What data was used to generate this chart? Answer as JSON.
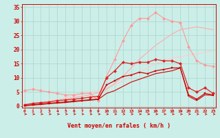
{
  "bg_color": "#cceee8",
  "grid_color": "#aad4ce",
  "xlabel": "Vent moyen/en rafales ( km/h )",
  "ylabel_values": [
    0,
    5,
    10,
    15,
    20,
    25,
    30,
    35
  ],
  "x_values": [
    0,
    1,
    2,
    3,
    4,
    5,
    6,
    7,
    8,
    9,
    10,
    11,
    12,
    13,
    14,
    15,
    16,
    17,
    18,
    19,
    20,
    21,
    22,
    23
  ],
  "series": [
    {
      "color": "#ffcccc",
      "marker": null,
      "markersize": 0,
      "linewidth": 0.8,
      "y": [
        0.0,
        0.6,
        1.2,
        1.8,
        2.4,
        3.0,
        3.6,
        4.2,
        4.8,
        5.5,
        6.5,
        7.5,
        9.0,
        10.5,
        12.0,
        13.5,
        15.0,
        16.0,
        17.0,
        17.5,
        18.0,
        18.5,
        19.0,
        19.5
      ]
    },
    {
      "color": "#ff9999",
      "marker": "D",
      "markersize": 2.2,
      "linewidth": 0.8,
      "y": [
        5.5,
        6.0,
        5.5,
        5.0,
        4.5,
        4.0,
        4.0,
        4.5,
        4.5,
        2.0,
        10.5,
        16.5,
        23.0,
        28.5,
        31.0,
        31.0,
        33.0,
        31.0,
        30.0,
        29.5,
        21.0,
        16.0,
        14.5,
        14.0
      ]
    },
    {
      "color": "#ffaaaa",
      "marker": null,
      "markersize": 0,
      "linewidth": 0.8,
      "y": [
        0.0,
        0.5,
        1.0,
        1.5,
        2.0,
        2.5,
        3.0,
        3.5,
        4.0,
        4.8,
        6.0,
        8.0,
        10.5,
        13.5,
        16.5,
        19.0,
        21.5,
        23.5,
        25.5,
        27.0,
        27.5,
        28.0,
        27.5,
        27.0
      ]
    },
    {
      "color": "#dd2222",
      "marker": "D",
      "markersize": 2.2,
      "linewidth": 0.9,
      "y": [
        0.5,
        1.0,
        1.3,
        1.5,
        2.0,
        2.2,
        2.5,
        2.8,
        3.2,
        3.5,
        10.0,
        12.5,
        15.5,
        15.0,
        15.5,
        15.5,
        16.5,
        16.0,
        16.0,
        15.0,
        6.5,
        5.0,
        6.5,
        4.5
      ]
    },
    {
      "color": "#cc0000",
      "marker": "s",
      "markersize": 2.0,
      "linewidth": 0.9,
      "y": [
        0.3,
        0.5,
        0.8,
        1.0,
        1.3,
        1.5,
        1.8,
        2.0,
        2.3,
        2.5,
        7.5,
        9.0,
        10.5,
        11.0,
        12.0,
        11.5,
        12.5,
        13.0,
        13.5,
        13.5,
        4.0,
        2.5,
        4.5,
        4.0
      ]
    },
    {
      "color": "#cc0000",
      "marker": null,
      "markersize": 0,
      "linewidth": 0.8,
      "y": [
        0.2,
        0.4,
        0.6,
        0.9,
        1.1,
        1.3,
        1.6,
        1.9,
        2.1,
        2.4,
        4.5,
        5.5,
        7.0,
        8.5,
        9.5,
        10.5,
        11.5,
        12.0,
        12.5,
        13.5,
        3.5,
        2.0,
        4.0,
        3.8
      ]
    }
  ],
  "figsize": [
    3.2,
    2.0
  ],
  "dpi": 100
}
